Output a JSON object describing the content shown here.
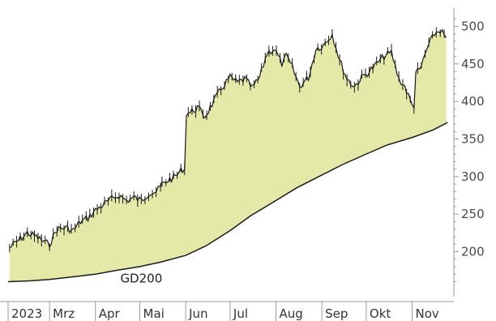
{
  "chart_data": {
    "type": "area",
    "title": "",
    "xlabel": "",
    "ylabel": "",
    "ylim": [
      140,
      520
    ],
    "y_ticks": [
      200,
      250,
      300,
      350,
      400,
      450,
      500
    ],
    "y_axis_position": "right",
    "grid": false,
    "x_tick_labels": [
      "2023",
      "Mrz",
      "Apr",
      "Mai",
      "Jun",
      "Jul",
      "Aug",
      "Sep",
      "Okt",
      "Nov"
    ],
    "annotation": "GD200",
    "colors": {
      "area_fill": "#e4e9a8",
      "price_line": "#1a1a1a",
      "ma_line": "#1a1a1a",
      "axis": "#9a9a9a"
    },
    "series": [
      {
        "style": "bar-line",
        "x": [
          "2023-02-02",
          "2023-02-08",
          "2023-02-14",
          "2023-02-20",
          "2023-02-26",
          "2023-03-01",
          "2023-03-06",
          "2023-03-12",
          "2023-03-17",
          "2023-03-22",
          "2023-03-27",
          "2023-04-01",
          "2023-04-06",
          "2023-04-12",
          "2023-04-17",
          "2023-04-22",
          "2023-04-27",
          "2023-05-02",
          "2023-05-07",
          "2023-05-12",
          "2023-05-15",
          "2023-05-16",
          "2023-05-20",
          "2023-05-25",
          "2023-05-30",
          "2023-06-04",
          "2023-06-09",
          "2023-06-14",
          "2023-06-20",
          "2023-06-26",
          "2023-07-01",
          "2023-07-06",
          "2023-07-11",
          "2023-07-16",
          "2023-07-21",
          "2023-07-26",
          "2023-07-31",
          "2023-08-05",
          "2023-08-08",
          "2023-08-12",
          "2023-08-17",
          "2023-08-23",
          "2023-08-28",
          "2023-09-02",
          "2023-09-08",
          "2023-09-13",
          "2023-09-18",
          "2023-09-23",
          "2023-09-28",
          "2023-10-03",
          "2023-10-08",
          "2023-10-13",
          "2023-10-18",
          "2023-10-23",
          "2023-10-27",
          "2023-11-01",
          "2023-11-06",
          "2023-11-11",
          "2023-11-16",
          "2023-11-20",
          "2023-11-24"
        ],
        "values": [
          205,
          215,
          225,
          220,
          212,
          210,
          230,
          232,
          228,
          240,
          245,
          255,
          262,
          270,
          275,
          268,
          272,
          268,
          278,
          280,
          285,
          290,
          295,
          300,
          310,
          385,
          392,
          380,
          400,
          420,
          432,
          425,
          430,
          418,
          432,
          465,
          470,
          450,
          460,
          445,
          420,
          432,
          470,
          475,
          490,
          455,
          430,
          420,
          432,
          440,
          450,
          460,
          465,
          430,
          420,
          395,
          440,
          470,
          490,
          495,
          485
        ]
      },
      {
        "name": "GD200",
        "style": "line",
        "x": [
          "2023-02-01",
          "2023-02-15",
          "2023-03-01",
          "2023-03-15",
          "2023-04-01",
          "2023-04-15",
          "2023-05-01",
          "2023-05-15",
          "2023-06-01",
          "2023-06-15",
          "2023-07-01",
          "2023-07-15",
          "2023-08-01",
          "2023-08-15",
          "2023-09-01",
          "2023-09-15",
          "2023-10-01",
          "2023-10-15",
          "2023-11-01",
          "2023-11-15",
          "2023-11-25"
        ],
        "values": [
          160,
          161,
          163,
          166,
          170,
          175,
          180,
          186,
          195,
          208,
          228,
          248,
          268,
          285,
          302,
          316,
          330,
          342,
          352,
          362,
          372
        ]
      }
    ]
  }
}
